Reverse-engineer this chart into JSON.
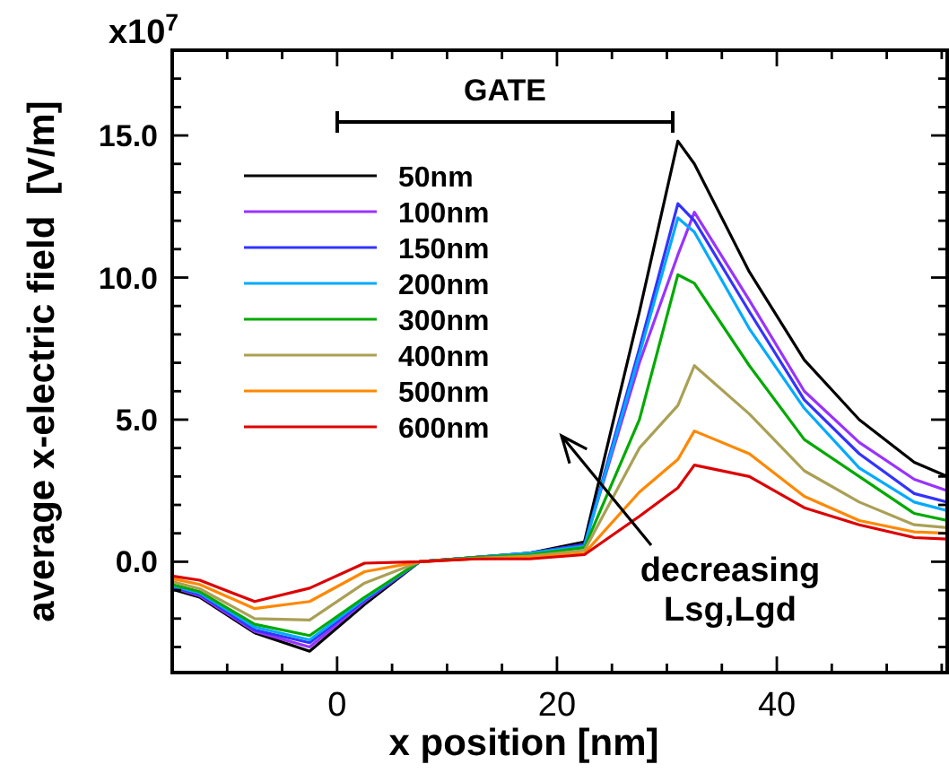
{
  "chart_data": {
    "type": "line",
    "xlabel": "x position [nm]",
    "ylabel": "average x-electric field  [V/m]",
    "annotations": [
      "x10$^{7}$",
      "GATE",
      "decreasing\nLsg,Lgd"
    ],
    "x": [
      -15,
      -12.5,
      -7.5,
      -2.5,
      2.5,
      7.5,
      12.5,
      17.5,
      22.5,
      27.5,
      31,
      32.5,
      37.5,
      42.5,
      47.5,
      52.5,
      55.5
    ],
    "xlim": [
      -15,
      55.5
    ],
    "ylim": [
      -3.9,
      18
    ],
    "xticks": [
      {
        "value": -10,
        "label": null
      },
      {
        "value": -5,
        "label": null
      },
      0,
      {
        "value": 5,
        "label": null
      },
      {
        "value": 10,
        "label": null
      },
      {
        "value": 15,
        "label": null
      },
      20,
      {
        "value": 25,
        "label": null
      },
      {
        "value": 30,
        "label": null
      },
      {
        "value": 35,
        "label": null
      },
      40,
      {
        "value": 45,
        "label": null
      },
      {
        "value": 50,
        "label": null
      },
      {
        "value": 55,
        "label": null
      }
    ],
    "yticks": [
      {
        "value": -3,
        "label": null
      },
      {
        "value": -2,
        "label": null
      },
      {
        "value": -1,
        "label": null
      },
      {
        "value": 0,
        "label": "0.0"
      },
      {
        "value": 1,
        "label": null
      },
      {
        "value": 2,
        "label": null
      },
      {
        "value": 3,
        "label": null
      },
      {
        "value": 4,
        "label": null
      },
      {
        "value": 5,
        "label": "5.0"
      },
      {
        "value": 6,
        "label": null
      },
      {
        "value": 7,
        "label": null
      },
      {
        "value": 8,
        "label": null
      },
      {
        "value": 9,
        "label": null
      },
      {
        "value": 10,
        "label": "10.0"
      },
      {
        "value": 11,
        "label": null
      },
      {
        "value": 12,
        "label": null
      },
      {
        "value": 13,
        "label": null
      },
      {
        "value": 14,
        "label": null
      },
      {
        "value": 15,
        "label": "15.0"
      },
      {
        "value": 16,
        "label": null
      },
      {
        "value": 17,
        "label": null
      }
    ],
    "grid": false,
    "legend": "top left",
    "marker": "none",
    "line_style": "solid",
    "series": [
      {
        "name": "50nm",
        "color": "#000000",
        "values": [
          -0.97,
          -1.25,
          -2.5,
          -3.15,
          -1.5,
          0,
          0.15,
          0.3,
          0.7,
          8.8,
          14.8,
          14.0,
          10.2,
          7.1,
          5.0,
          3.5,
          3.0
        ]
      },
      {
        "name": "100nm",
        "color": "#9933ff",
        "values": [
          -0.9,
          -1.2,
          -2.45,
          -3.0,
          -1.4,
          0,
          0.15,
          0.3,
          0.6,
          7.0,
          10.8,
          12.3,
          9.2,
          6.0,
          4.2,
          2.9,
          2.5
        ]
      },
      {
        "name": "150nm",
        "color": "#3333ff",
        "values": [
          -0.88,
          -1.15,
          -2.4,
          -2.85,
          -1.35,
          0,
          0.15,
          0.3,
          0.6,
          7.5,
          12.6,
          12.0,
          8.8,
          5.7,
          3.8,
          2.4,
          2.1
        ]
      },
      {
        "name": "200nm",
        "color": "#00aaff",
        "values": [
          -0.85,
          -1.1,
          -2.3,
          -2.75,
          -1.3,
          0,
          0.15,
          0.3,
          0.55,
          7.3,
          12.1,
          11.6,
          8.2,
          5.4,
          3.3,
          2.1,
          1.8
        ]
      },
      {
        "name": "300nm",
        "color": "#00aa00",
        "values": [
          -0.8,
          -1.05,
          -2.2,
          -2.6,
          -1.25,
          0,
          0.15,
          0.25,
          0.5,
          5.0,
          10.1,
          9.8,
          6.9,
          4.3,
          3.0,
          1.7,
          1.45
        ]
      },
      {
        "name": "400nm",
        "color": "#aaa055",
        "values": [
          -0.7,
          -0.95,
          -2.0,
          -2.05,
          -0.75,
          0,
          0.12,
          0.2,
          0.4,
          4.0,
          5.5,
          6.9,
          5.2,
          3.2,
          2.1,
          1.3,
          1.2
        ]
      },
      {
        "name": "500nm",
        "color": "#ff8800",
        "values": [
          -0.6,
          -0.8,
          -1.65,
          -1.4,
          -0.35,
          0,
          0.1,
          0.15,
          0.3,
          2.45,
          3.6,
          4.6,
          3.8,
          2.3,
          1.45,
          1.05,
          1.0
        ]
      },
      {
        "name": "600nm",
        "color": "#dd0000",
        "values": [
          -0.5,
          -0.65,
          -1.4,
          -0.93,
          -0.05,
          0,
          0.1,
          0.1,
          0.25,
          1.6,
          2.6,
          3.4,
          3.0,
          1.9,
          1.3,
          0.85,
          0.8
        ]
      }
    ]
  }
}
